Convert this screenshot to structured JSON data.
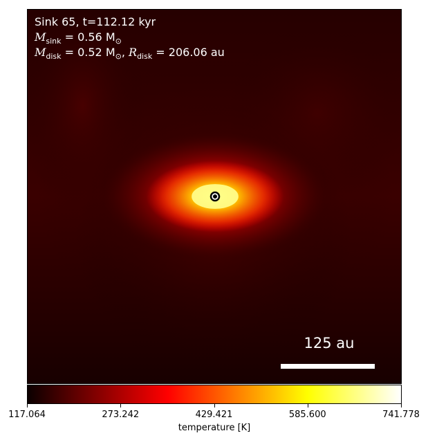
{
  "annotation": {
    "line1": "Sink 65, t=112.12 kyr",
    "m_sink_label": "M",
    "m_sink_sub": "sink",
    "m_sink_value": " = 0.56 M",
    "m_sink_unit_sub": "⊙",
    "m_disk_label": "M",
    "m_disk_sub": "disk",
    "m_disk_value": " = 0.52 M",
    "m_disk_unit_sub": "⊙",
    "r_disk_sep": ", ",
    "r_disk_label": "R",
    "r_disk_sub": "disk",
    "r_disk_value": " = 206.06 au"
  },
  "scale_bar": {
    "label": "125 au"
  },
  "colorbar": {
    "label": "temperature [K]",
    "ticks": [
      "117.064",
      "273.242",
      "429.421",
      "585.600",
      "741.778"
    ],
    "colormap": "hot"
  },
  "marker": {
    "name": "sink-particle"
  }
}
